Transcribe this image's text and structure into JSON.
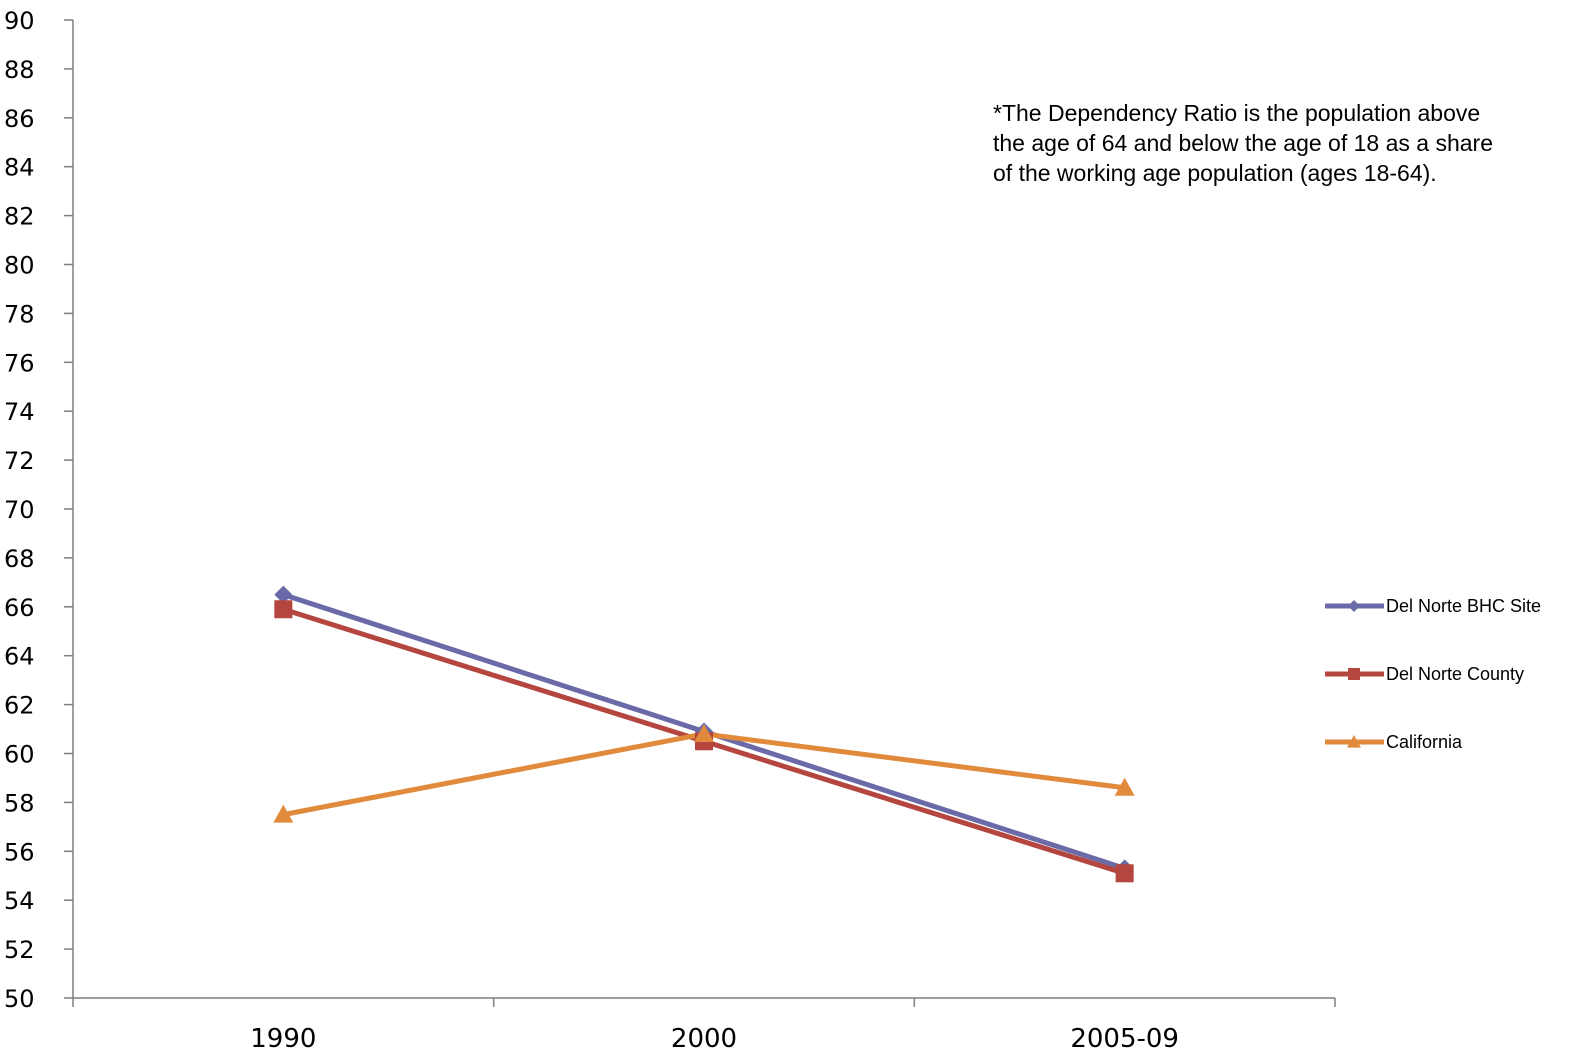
{
  "chart_data": {
    "type": "line",
    "categories": [
      "1990",
      "2000",
      "2005-09"
    ],
    "ylim": [
      50,
      90
    ],
    "ytick_step": 2,
    "grid": false,
    "legend_position": "right",
    "series": [
      {
        "name": "Del Norte BHC Site",
        "values": [
          66.5,
          60.9,
          55.3
        ],
        "color": "#6b6aa8",
        "marker": "diamond"
      },
      {
        "name": "Del Norte County",
        "values": [
          65.9,
          60.5,
          55.1
        ],
        "color": "#b5453f",
        "marker": "square"
      },
      {
        "name": "California",
        "values": [
          57.5,
          60.8,
          58.6
        ],
        "color": "#e18a3c",
        "marker": "triangle"
      }
    ]
  },
  "note": {
    "lines": [
      "*The Dependency Ratio is the population above",
      "the age of 64 and below the age of 18 as a share",
      "of the working age population (ages 18-64)."
    ]
  }
}
